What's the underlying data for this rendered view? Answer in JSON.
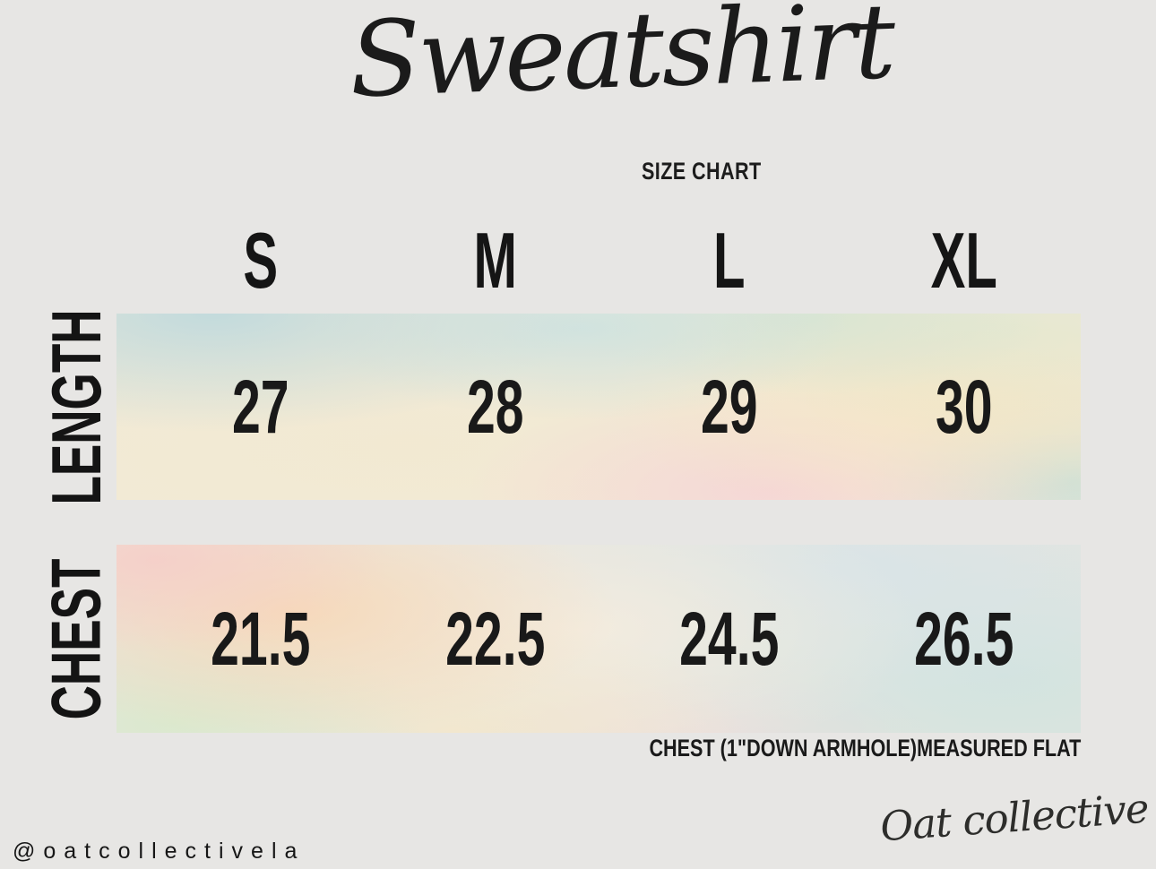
{
  "title": {
    "script": "Sweatshirt",
    "subtitle": "SIZE CHART"
  },
  "chart_data": {
    "type": "table",
    "title": "Sweatshirt Size Chart",
    "columns": [
      "S",
      "M",
      "L",
      "XL"
    ],
    "rows": [
      {
        "label": "LENGTH",
        "values": [
          "27",
          "28",
          "29",
          "30"
        ]
      },
      {
        "label": "CHEST",
        "values": [
          "21.5",
          "22.5",
          "24.5",
          "26.5"
        ]
      }
    ],
    "note": "CHEST (1\"DOWN ARMHOLE)MEASURED FLAT"
  },
  "footer": {
    "handle": "@oatcollectivela",
    "brand_signature": "Oat collective"
  },
  "colors": {
    "background": "#e7e6e4",
    "text": "#171717",
    "watercolor_palette": [
      "#cfe0e2",
      "#f4ead3",
      "#f5e2c9",
      "#f5d7d8",
      "#dfead3",
      "#dbe6e4",
      "#f5d2cc"
    ]
  }
}
